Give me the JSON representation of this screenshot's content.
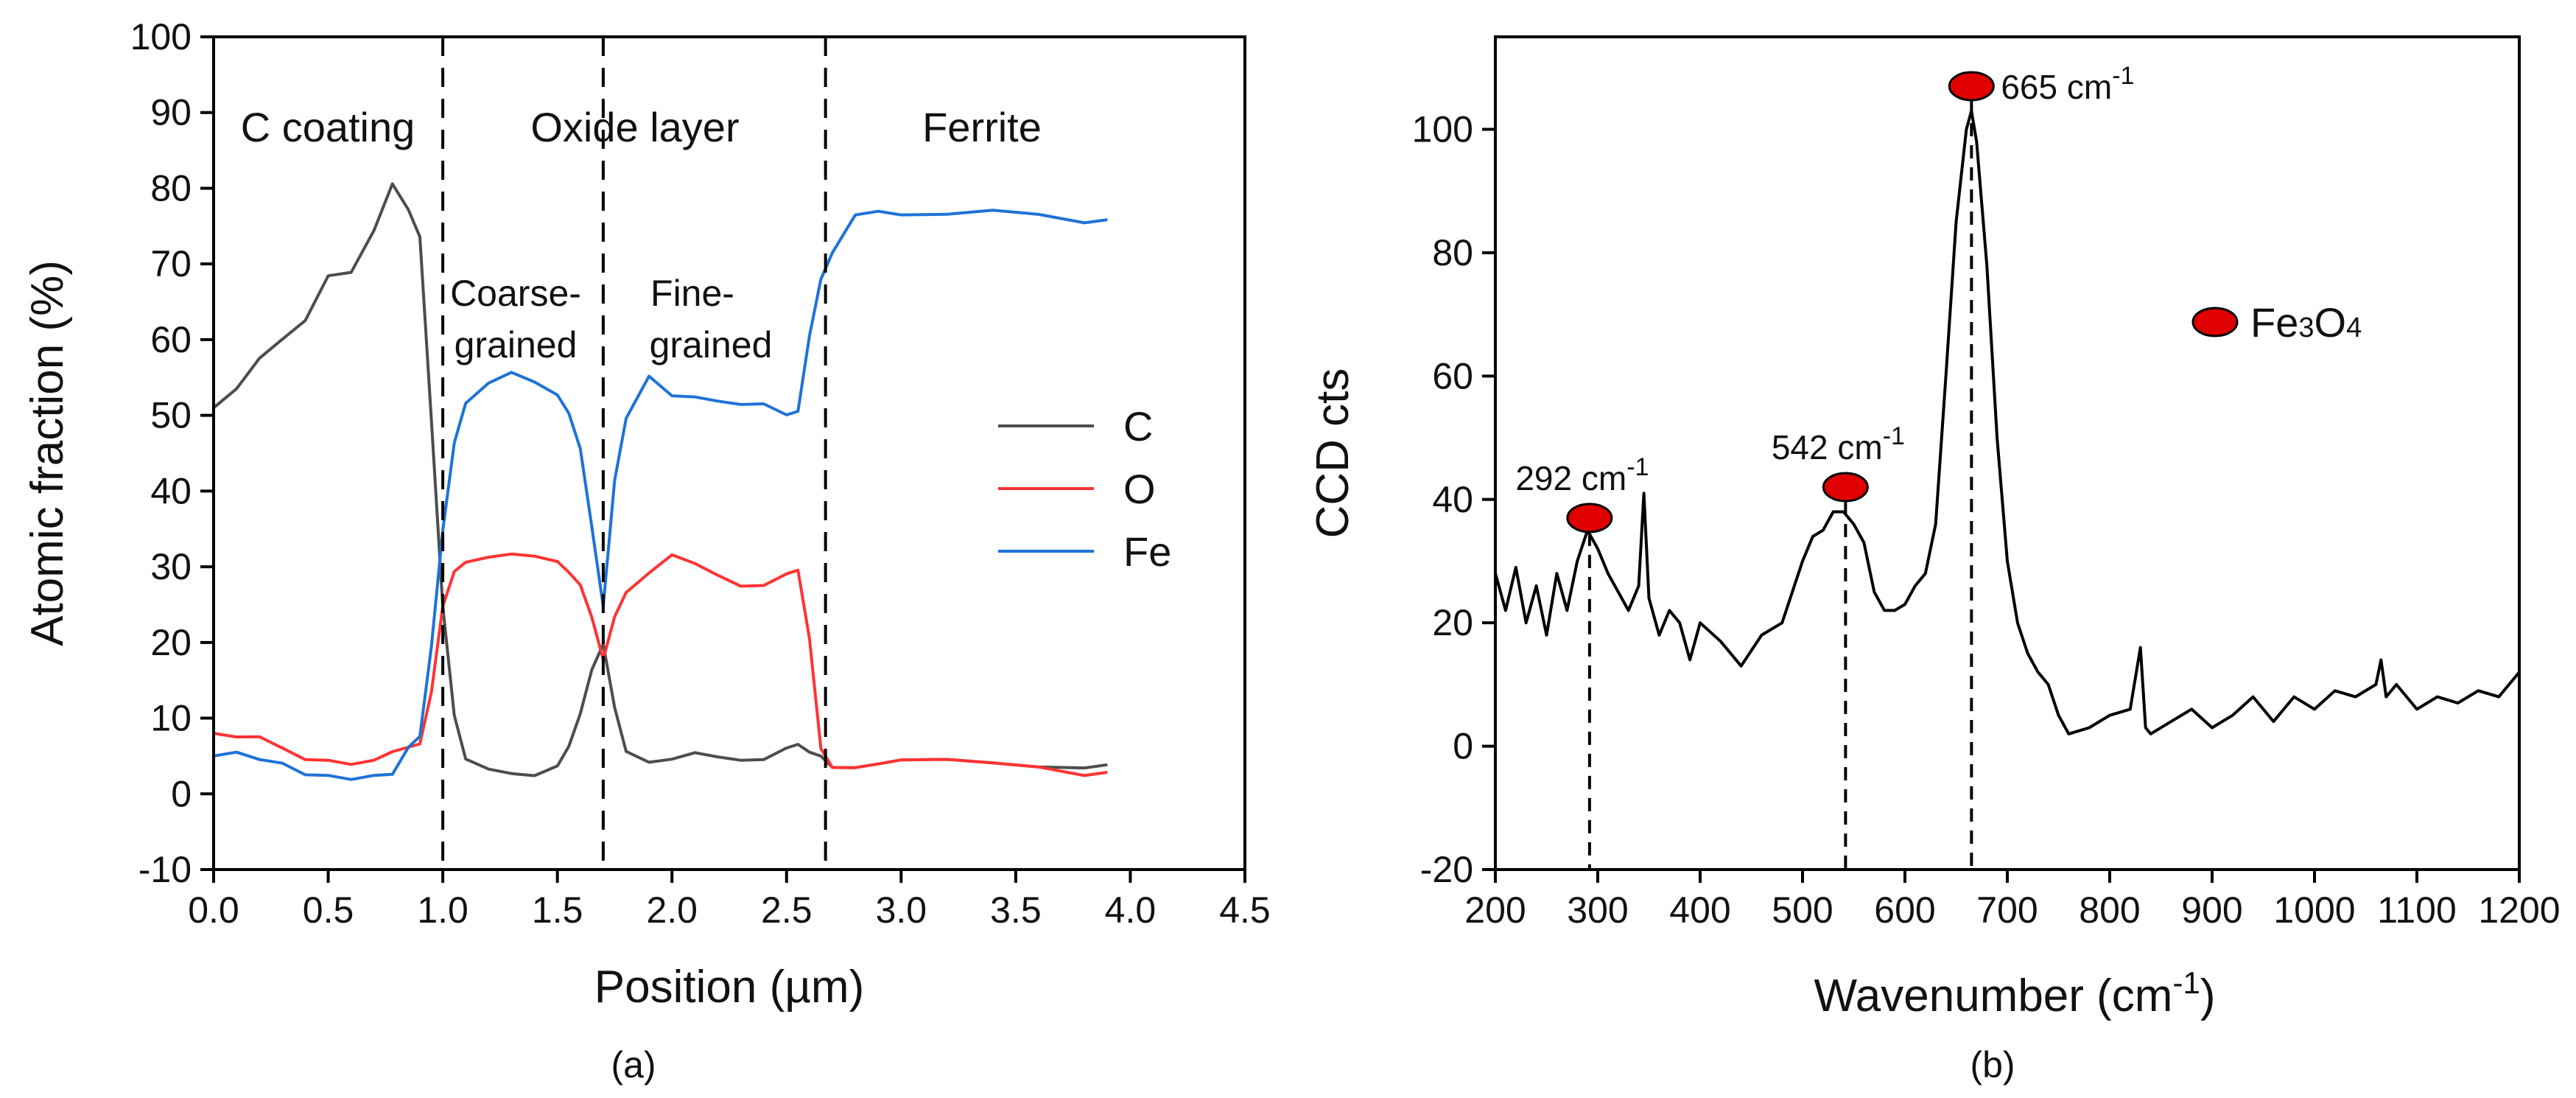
{
  "chart_data": [
    {
      "type": "line",
      "panel_label": "(a)",
      "xlabel": "Position (µm)",
      "ylabel": "Atomic fraction (%)",
      "xlim": [
        0.0,
        4.5
      ],
      "ylim": [
        -10,
        100
      ],
      "xticks": [
        "0.0",
        "0.5",
        "1.0",
        "1.5",
        "2.0",
        "2.5",
        "3.0",
        "3.5",
        "4.0",
        "4.5"
      ],
      "yticks": [
        "-10",
        "0",
        "10",
        "20",
        "30",
        "40",
        "50",
        "60",
        "70",
        "80",
        "90",
        "100"
      ],
      "region_labels": [
        "C coating",
        "Oxide layer",
        "Ferrite"
      ],
      "sublayer_labels": [
        {
          "line1": "Coarse-",
          "line2": "grained"
        },
        {
          "line1": "Fine-",
          "line2": "grained"
        }
      ],
      "boundaries": [
        1.0,
        1.7,
        2.67
      ],
      "x": [
        0.0,
        0.1,
        0.2,
        0.3,
        0.4,
        0.5,
        0.6,
        0.7,
        0.78,
        0.85,
        0.9,
        0.95,
        1.0,
        1.05,
        1.1,
        1.2,
        1.3,
        1.4,
        1.5,
        1.55,
        1.6,
        1.65,
        1.7,
        1.75,
        1.8,
        1.9,
        2.0,
        2.1,
        2.2,
        2.3,
        2.4,
        2.5,
        2.55,
        2.6,
        2.65,
        2.7,
        2.8,
        2.9,
        3.0,
        3.2,
        3.4,
        3.6,
        3.8,
        3.9
      ],
      "series": [
        {
          "name": "C",
          "color": "#4d4d4d",
          "values": [
            51,
            53,
            57,
            60,
            63,
            69,
            69,
            74,
            80,
            77,
            74,
            50,
            25,
            10,
            4,
            3,
            3,
            3,
            4,
            6,
            10,
            16,
            20,
            12,
            6,
            4,
            4,
            5,
            5,
            5,
            5,
            6,
            6,
            5,
            5,
            4,
            4,
            4,
            4,
            4,
            4,
            4,
            4,
            4
          ]
        },
        {
          "name": "O",
          "color": "#ff3333",
          "values": [
            8,
            7,
            7,
            6,
            5,
            5,
            4,
            4,
            5,
            6,
            7,
            14,
            25,
            29,
            30,
            31,
            32,
            32,
            31,
            29,
            27,
            23,
            18,
            24,
            27,
            29,
            31,
            30,
            29,
            28,
            28,
            29,
            29,
            20,
            6,
            4,
            4,
            4,
            4,
            4,
            4,
            4,
            3,
            3
          ]
        },
        {
          "name": "Fe",
          "color": "#1e73d8",
          "values": [
            5,
            5,
            4,
            4,
            3,
            3,
            2,
            2,
            2,
            6,
            8,
            20,
            35,
            46,
            51,
            54,
            56,
            55,
            53,
            50,
            45,
            35,
            25,
            42,
            50,
            55,
            52,
            52,
            52,
            52,
            52,
            50,
            50,
            60,
            68,
            72,
            77,
            77,
            76,
            76,
            77,
            77,
            76,
            76
          ]
        }
      ],
      "legend": [
        "C",
        "O",
        "Fe"
      ]
    },
    {
      "type": "line",
      "panel_label": "(b)",
      "xlabel_main": "Wavenumber (cm",
      "xlabel_sup": "-1",
      "xlabel_end": ")",
      "ylabel": "CCD cts",
      "xlim": [
        200,
        1200
      ],
      "ylim": [
        -20,
        115
      ],
      "xticks": [
        "200",
        "300",
        "400",
        "500",
        "600",
        "700",
        "800",
        "900",
        "1000",
        "1100",
        "1200"
      ],
      "yticks": [
        "-20",
        "0",
        "20",
        "40",
        "60",
        "80",
        "100"
      ],
      "x": [
        200,
        210,
        220,
        230,
        240,
        250,
        260,
        270,
        280,
        290,
        300,
        310,
        320,
        330,
        340,
        345,
        350,
        360,
        370,
        380,
        390,
        400,
        420,
        440,
        460,
        480,
        500,
        510,
        520,
        530,
        540,
        550,
        560,
        570,
        580,
        590,
        600,
        610,
        620,
        630,
        640,
        650,
        660,
        665,
        670,
        680,
        690,
        700,
        710,
        720,
        730,
        740,
        750,
        760,
        780,
        800,
        820,
        830,
        835,
        840,
        860,
        880,
        900,
        920,
        940,
        960,
        980,
        1000,
        1020,
        1040,
        1060,
        1065,
        1070,
        1080,
        1100,
        1120,
        1140,
        1160,
        1180,
        1200
      ],
      "values": [
        28,
        22,
        29,
        20,
        26,
        18,
        28,
        22,
        30,
        35,
        32,
        28,
        25,
        22,
        26,
        41,
        24,
        18,
        22,
        20,
        14,
        20,
        17,
        13,
        18,
        20,
        30,
        34,
        35,
        38,
        38,
        36,
        33,
        25,
        22,
        22,
        23,
        26,
        28,
        36,
        60,
        85,
        100,
        103,
        98,
        78,
        50,
        30,
        20,
        15,
        12,
        10,
        5,
        2,
        3,
        5,
        6,
        16,
        3,
        2,
        4,
        6,
        3,
        5,
        8,
        4,
        8,
        6,
        9,
        8,
        10,
        14,
        8,
        10,
        6,
        8,
        7,
        9,
        8,
        12
      ],
      "color": "#000000",
      "peaks": [
        {
          "label": "292 cm",
          "sup": "-1",
          "x": 292,
          "y": 37
        },
        {
          "label": "542 cm",
          "sup": "-1",
          "x": 542,
          "y": 42
        },
        {
          "label": "665 cm",
          "sup": "-1",
          "x": 665,
          "y": 107
        }
      ],
      "marker_color": "#e00000",
      "legend_main": "Fe",
      "legend_sub1": "3",
      "legend_mid": "O",
      "legend_sub2": "4"
    }
  ]
}
